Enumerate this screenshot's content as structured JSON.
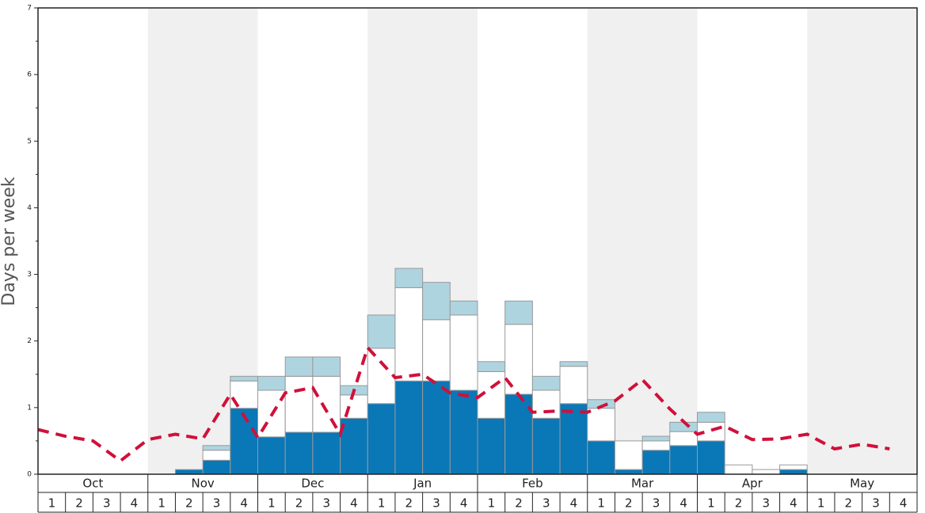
{
  "chart_data": {
    "type": "stacked_bar_line",
    "y_label": "Days per week",
    "months": [
      "Oct",
      "Nov",
      "Dec",
      "Jan",
      "Feb",
      "Mar",
      "Apr",
      "May"
    ],
    "categories": [
      "1",
      "2",
      "3",
      "4",
      "1",
      "2",
      "3",
      "4",
      "1",
      "2",
      "3",
      "4",
      "1",
      "2",
      "3",
      "4",
      "1",
      "2",
      "3",
      "4",
      "1",
      "2",
      "3",
      "4",
      "1",
      "2",
      "3",
      "4",
      "1",
      "2",
      "3",
      "4"
    ],
    "series": [
      {
        "color": "#0a77b7",
        "values": [
          0,
          0,
          0,
          0,
          0,
          0.07,
          0.21,
          0.99,
          0.56,
          0.63,
          0.63,
          0.84,
          1.06,
          1.4,
          1.4,
          1.26,
          0.84,
          1.2,
          0.84,
          1.06,
          0.5,
          0.07,
          0.36,
          0.43,
          0.5,
          0,
          0,
          0.07,
          0,
          0,
          0,
          0
        ]
      },
      {
        "color": "#ffffff",
        "values": [
          0,
          0,
          0,
          0,
          0,
          0,
          0.15,
          0.41,
          0.7,
          0.84,
          0.84,
          0.35,
          0.83,
          1.4,
          0.92,
          1.13,
          0.7,
          1.05,
          0.42,
          0.56,
          0.49,
          0.43,
          0.14,
          0.21,
          0.28,
          0.14,
          0.07,
          0.07,
          0,
          0,
          0,
          0
        ]
      },
      {
        "color": "#aed4e0",
        "values": [
          0,
          0,
          0,
          0,
          0,
          0,
          0.07,
          0.07,
          0.21,
          0.29,
          0.29,
          0.14,
          0.5,
          0.29,
          0.56,
          0.21,
          0.15,
          0.35,
          0.21,
          0.07,
          0.13,
          0,
          0.07,
          0.14,
          0.15,
          0,
          0,
          0,
          0,
          0,
          0,
          0
        ]
      }
    ],
    "line": {
      "color": "#d0103a",
      "values": [
        0.67,
        0.57,
        0.5,
        0.2,
        0.52,
        0.6,
        0.53,
        1.2,
        0.55,
        1.22,
        1.3,
        0.6,
        1.9,
        1.45,
        1.5,
        1.22,
        1.15,
        1.45,
        0.93,
        0.95,
        0.93,
        1.1,
        1.42,
        0.98,
        0.6,
        0.72,
        0.52,
        0.53,
        0.6,
        0.38,
        0.45,
        0.38
      ]
    },
    "ylim": [
      0,
      7
    ],
    "yticks": [
      0,
      1,
      2,
      3,
      4,
      5,
      6,
      7
    ],
    "shade_color": "#f0f0f0"
  }
}
